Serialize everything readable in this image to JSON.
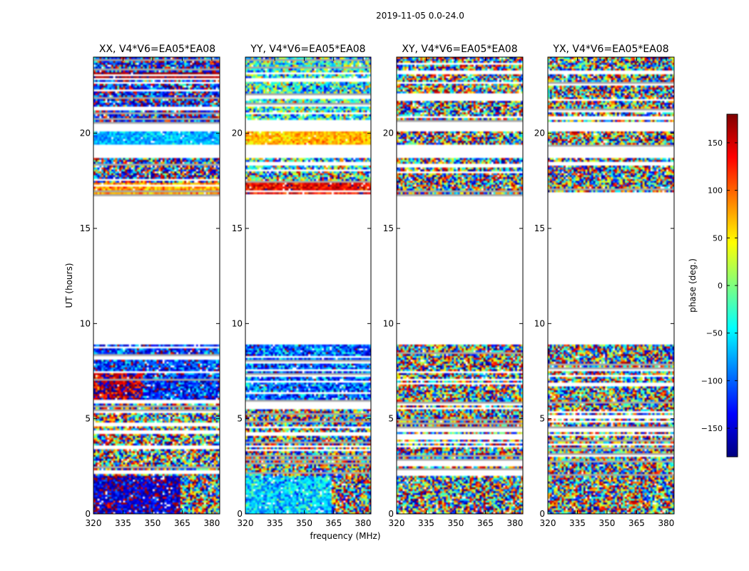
{
  "figure": {
    "suptitle": "2019-11-05 0.0-24.0",
    "xlabel": "frequency (MHz)",
    "ylabel": "UT (hours)"
  },
  "colorbar": {
    "label": "phase (deg.)",
    "range": [
      -180,
      180
    ],
    "ticks": [
      -150,
      -100,
      -50,
      0,
      50,
      100,
      150
    ],
    "tick_labels": [
      "−150",
      "−100",
      "−50",
      "0",
      "50",
      "100",
      "150"
    ],
    "colormap": [
      "#00007f",
      "#0000ff",
      "#007fff",
      "#00ffff",
      "#7fff7f",
      "#ffff00",
      "#ff7f00",
      "#ff0000",
      "#7f0000"
    ]
  },
  "chart_data": [
    {
      "type": "heatmap",
      "title": "XX, V4*V6=EA05*EA08",
      "xlim": [
        320,
        384
      ],
      "ylim": [
        0,
        24
      ],
      "xticks": [
        320,
        335,
        350,
        365,
        380
      ],
      "yticks": [
        0,
        5,
        10,
        15,
        20
      ],
      "value": "phase (deg.)",
      "data_blocks": [
        {
          "ut": [
            0.0,
            2.0
          ],
          "phase_behavior": "coherent near -150 below 364 MHz, noisy above"
        },
        {
          "ut": [
            2.0,
            5.8
          ],
          "phase_behavior": "random, many flagged rows"
        },
        {
          "ut": [
            5.9,
            8.9
          ],
          "phase_behavior": "mostly -150 to -180 with red patches near 330-345 MHz"
        },
        {
          "ut": [
            16.8,
            18.6
          ],
          "phase_behavior": "noisy, yellow band near 17 h"
        },
        {
          "ut": [
            19.4,
            20.1
          ],
          "phase_behavior": "coherent near -60 to -90"
        },
        {
          "ut": [
            20.6,
            24.0
          ],
          "phase_behavior": "mostly blue/noisy, red row near 23 h"
        }
      ]
    },
    {
      "type": "heatmap",
      "title": "YY, V4*V6=EA05*EA08",
      "xlim": [
        320,
        384
      ],
      "ylim": [
        0,
        24
      ],
      "xticks": [
        320,
        335,
        350,
        365,
        380
      ],
      "yticks": [
        0,
        5,
        10,
        15,
        20
      ],
      "value": "phase (deg.)",
      "data_blocks": [
        {
          "ut": [
            0.0,
            2.0
          ],
          "phase_behavior": "coherent near -60 below 364 MHz, noisy above"
        },
        {
          "ut": [
            2.0,
            5.8
          ],
          "phase_behavior": "random, many flagged rows"
        },
        {
          "ut": [
            5.9,
            8.9
          ],
          "phase_behavior": "mostly -90 to -120"
        },
        {
          "ut": [
            16.8,
            18.6
          ],
          "phase_behavior": "noisy, red/orange band near 17 h"
        },
        {
          "ut": [
            19.4,
            20.1
          ],
          "phase_behavior": "coherent near 50 to 100"
        },
        {
          "ut": [
            20.6,
            24.0
          ],
          "phase_behavior": "mostly cyan/green, noisy"
        }
      ]
    },
    {
      "type": "heatmap",
      "title": "XY, V4*V6=EA05*EA08",
      "xlim": [
        320,
        384
      ],
      "ylim": [
        0,
        24
      ],
      "xticks": [
        320,
        335,
        350,
        365,
        380
      ],
      "yticks": [
        0,
        5,
        10,
        15,
        20
      ],
      "value": "phase (deg.)",
      "data_blocks": [
        {
          "ut": [
            0.0,
            2.0
          ],
          "phase_behavior": "random"
        },
        {
          "ut": [
            2.0,
            5.8
          ],
          "phase_behavior": "random, many flagged rows"
        },
        {
          "ut": [
            5.9,
            8.9
          ],
          "phase_behavior": "random"
        },
        {
          "ut": [
            16.8,
            18.6
          ],
          "phase_behavior": "random"
        },
        {
          "ut": [
            19.4,
            20.1
          ],
          "phase_behavior": "random"
        },
        {
          "ut": [
            20.6,
            24.0
          ],
          "phase_behavior": "random"
        }
      ]
    },
    {
      "type": "heatmap",
      "title": "YX, V4*V6=EA05*EA08",
      "xlim": [
        320,
        384
      ],
      "ylim": [
        0,
        24
      ],
      "xticks": [
        320,
        335,
        350,
        365,
        380
      ],
      "yticks": [
        0,
        5,
        10,
        15,
        20
      ],
      "value": "phase (deg.)",
      "data_blocks": [
        {
          "ut": [
            0.0,
            2.0
          ],
          "phase_behavior": "random"
        },
        {
          "ut": [
            2.0,
            5.8
          ],
          "phase_behavior": "random, many flagged rows"
        },
        {
          "ut": [
            5.9,
            8.9
          ],
          "phase_behavior": "random"
        },
        {
          "ut": [
            16.8,
            18.6
          ],
          "phase_behavior": "random"
        },
        {
          "ut": [
            19.4,
            20.1
          ],
          "phase_behavior": "random"
        },
        {
          "ut": [
            20.6,
            24.0
          ],
          "phase_behavior": "random"
        }
      ]
    }
  ]
}
